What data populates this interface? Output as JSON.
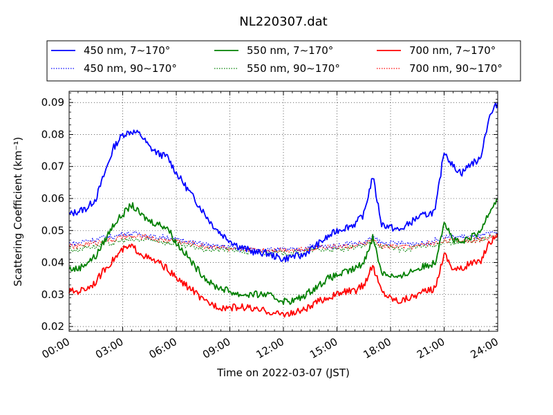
{
  "chart_data": {
    "type": "line",
    "title": "NL220307.dat",
    "xlabel": "Time on 2022-03-07 (JST)",
    "ylabel": "Scattering Coefficient (km⁻¹)",
    "xlim": [
      "00:00",
      "24:00"
    ],
    "ylim": [
      0.0185,
      0.0935
    ],
    "x_ticks": [
      "00:00",
      "03:00",
      "06:00",
      "09:00",
      "12:00",
      "15:00",
      "18:00",
      "21:00",
      "24:00"
    ],
    "y_ticks": [
      "0.02",
      "0.03",
      "0.04",
      "0.05",
      "0.06",
      "0.07",
      "0.08",
      "0.09"
    ],
    "grid": true,
    "legend_position": "top (above plot)",
    "x_hours": [
      0,
      0.5,
      1,
      1.5,
      2,
      2.5,
      3,
      3.5,
      4,
      4.5,
      5,
      5.5,
      6,
      6.5,
      7,
      7.5,
      8,
      8.5,
      9,
      9.5,
      10,
      10.5,
      11,
      11.5,
      12,
      12.5,
      13,
      13.5,
      14,
      14.5,
      15,
      15.5,
      16,
      16.5,
      17,
      17.5,
      18,
      18.5,
      19,
      19.5,
      20,
      20.5,
      21,
      21.5,
      22,
      22.5,
      23,
      23.5,
      24
    ],
    "series": [
      {
        "name": "450 nm, 7∼170°",
        "color": "#0000ff",
        "style": "solid",
        "values": [
          0.055,
          0.056,
          0.057,
          0.06,
          0.068,
          0.076,
          0.08,
          0.081,
          0.08,
          0.076,
          0.074,
          0.073,
          0.068,
          0.064,
          0.06,
          0.056,
          0.052,
          0.049,
          0.047,
          0.045,
          0.044,
          0.043,
          0.043,
          0.042,
          0.041,
          0.042,
          0.042,
          0.044,
          0.046,
          0.048,
          0.05,
          0.051,
          0.052,
          0.055,
          0.067,
          0.052,
          0.051,
          0.05,
          0.052,
          0.054,
          0.055,
          0.056,
          0.075,
          0.07,
          0.068,
          0.071,
          0.072,
          0.085,
          0.09
        ]
      },
      {
        "name": "450 nm, 90∼170°",
        "color": "#0000ff",
        "style": "dotted",
        "values": [
          0.046,
          0.046,
          0.047,
          0.047,
          0.048,
          0.048,
          0.049,
          0.049,
          0.049,
          0.048,
          0.048,
          0.048,
          0.047,
          0.047,
          0.046,
          0.046,
          0.045,
          0.045,
          0.045,
          0.044,
          0.044,
          0.044,
          0.044,
          0.044,
          0.044,
          0.044,
          0.044,
          0.045,
          0.045,
          0.045,
          0.045,
          0.046,
          0.046,
          0.046,
          0.048,
          0.046,
          0.046,
          0.046,
          0.046,
          0.046,
          0.046,
          0.047,
          0.048,
          0.048,
          0.048,
          0.048,
          0.048,
          0.049,
          0.049
        ]
      },
      {
        "name": "550 nm, 7∼170°",
        "color": "#008000",
        "style": "solid",
        "values": [
          0.038,
          0.038,
          0.04,
          0.042,
          0.047,
          0.052,
          0.055,
          0.058,
          0.055,
          0.053,
          0.052,
          0.051,
          0.046,
          0.043,
          0.039,
          0.036,
          0.033,
          0.032,
          0.031,
          0.03,
          0.03,
          0.03,
          0.03,
          0.029,
          0.028,
          0.028,
          0.029,
          0.031,
          0.033,
          0.035,
          0.036,
          0.037,
          0.038,
          0.04,
          0.048,
          0.037,
          0.036,
          0.035,
          0.037,
          0.038,
          0.039,
          0.04,
          0.053,
          0.047,
          0.046,
          0.048,
          0.049,
          0.056,
          0.06
        ]
      },
      {
        "name": "550 nm, 90∼170°",
        "color": "#008000",
        "style": "dotted",
        "values": [
          0.044,
          0.044,
          0.045,
          0.045,
          0.046,
          0.046,
          0.047,
          0.047,
          0.047,
          0.047,
          0.047,
          0.046,
          0.046,
          0.045,
          0.045,
          0.044,
          0.044,
          0.044,
          0.044,
          0.044,
          0.043,
          0.043,
          0.043,
          0.043,
          0.043,
          0.043,
          0.043,
          0.044,
          0.044,
          0.044,
          0.044,
          0.044,
          0.045,
          0.045,
          0.047,
          0.045,
          0.045,
          0.044,
          0.044,
          0.045,
          0.045,
          0.045,
          0.047,
          0.046,
          0.046,
          0.047,
          0.047,
          0.048,
          0.048
        ]
      },
      {
        "name": "700 nm, 7∼170°",
        "color": "#ff0000",
        "style": "solid",
        "values": [
          0.031,
          0.031,
          0.032,
          0.034,
          0.038,
          0.041,
          0.044,
          0.045,
          0.043,
          0.041,
          0.04,
          0.038,
          0.035,
          0.033,
          0.031,
          0.028,
          0.027,
          0.026,
          0.026,
          0.026,
          0.026,
          0.025,
          0.025,
          0.024,
          0.024,
          0.024,
          0.025,
          0.026,
          0.028,
          0.029,
          0.03,
          0.031,
          0.031,
          0.033,
          0.039,
          0.031,
          0.029,
          0.028,
          0.029,
          0.03,
          0.031,
          0.032,
          0.043,
          0.038,
          0.038,
          0.04,
          0.04,
          0.046,
          0.049
        ]
      },
      {
        "name": "700 nm, 90∼170°",
        "color": "#ff0000",
        "style": "dotted",
        "values": [
          0.045,
          0.045,
          0.046,
          0.046,
          0.047,
          0.047,
          0.048,
          0.048,
          0.048,
          0.048,
          0.047,
          0.047,
          0.047,
          0.046,
          0.046,
          0.045,
          0.045,
          0.045,
          0.044,
          0.044,
          0.044,
          0.044,
          0.044,
          0.044,
          0.044,
          0.044,
          0.044,
          0.044,
          0.045,
          0.045,
          0.045,
          0.045,
          0.045,
          0.046,
          0.047,
          0.045,
          0.045,
          0.045,
          0.045,
          0.045,
          0.046,
          0.046,
          0.047,
          0.047,
          0.047,
          0.047,
          0.047,
          0.048,
          0.048
        ]
      }
    ]
  }
}
